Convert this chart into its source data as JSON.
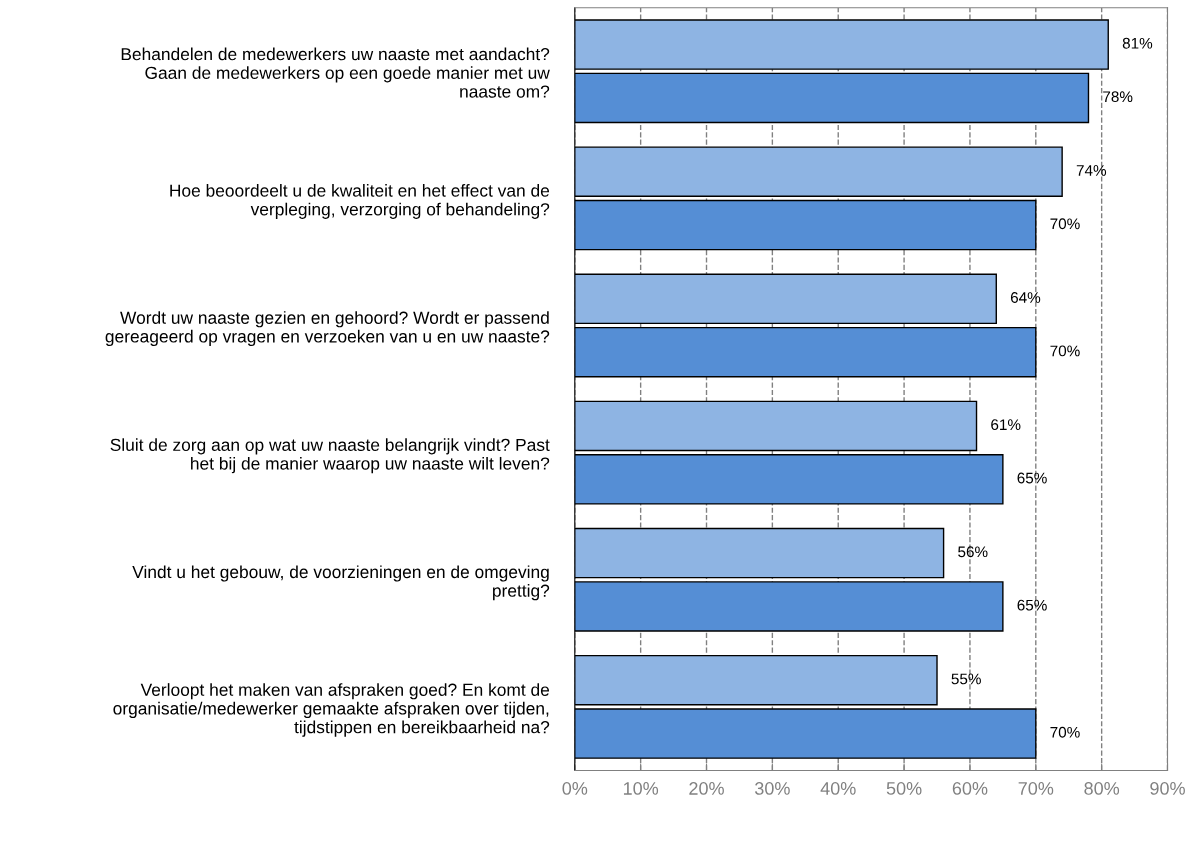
{
  "chart_data": {
    "type": "bar",
    "orientation": "horizontal",
    "categories": [
      "Behandelen de medewerkers uw naaste met aandacht?\nGaan de medewerkers op een goede manier met uw\nnaaste om?",
      "Hoe beoordeelt u de kwaliteit en het effect van de\nverpleging, verzorging of behandeling?",
      "Wordt uw naaste gezien en gehoord? Wordt er passend\ngereageerd op vragen en verzoeken van u en uw naaste?",
      "Sluit de zorg aan op wat uw naaste belangrijk vindt? Past\nhet bij de manier waarop uw naaste wilt leven?",
      "Vindt u het gebouw, de voorzieningen en de omgeving\nprettig?",
      "Verloopt het maken van afspraken goed? En komt de\norganisatie/medewerker gemaakte afspraken over tijden,\ntijdstippen en bereikbaarheid na?"
    ],
    "series": [
      {
        "color": "#8eb4e3",
        "values": [
          81,
          74,
          64,
          61,
          56,
          55
        ],
        "value_labels": [
          "81%",
          "74%",
          "64%",
          "61%",
          "56%",
          "55%"
        ]
      },
      {
        "color": "#558ed5",
        "values": [
          78,
          70,
          70,
          65,
          65,
          70
        ],
        "value_labels": [
          "78%",
          "70%",
          "70%",
          "65%",
          "65%",
          "70%"
        ]
      }
    ],
    "xlim": [
      0,
      90
    ],
    "xticks": [
      {
        "value": 0,
        "label": "0%"
      },
      {
        "value": 10,
        "label": "10%"
      },
      {
        "value": 20,
        "label": "20%"
      },
      {
        "value": 30,
        "label": "30%"
      },
      {
        "value": 40,
        "label": "40%"
      },
      {
        "value": 50,
        "label": "50%"
      },
      {
        "value": 60,
        "label": "60%"
      },
      {
        "value": 70,
        "label": "70%"
      },
      {
        "value": 80,
        "label": "80%"
      },
      {
        "value": 90,
        "label": "90%"
      }
    ],
    "grid": "x"
  }
}
